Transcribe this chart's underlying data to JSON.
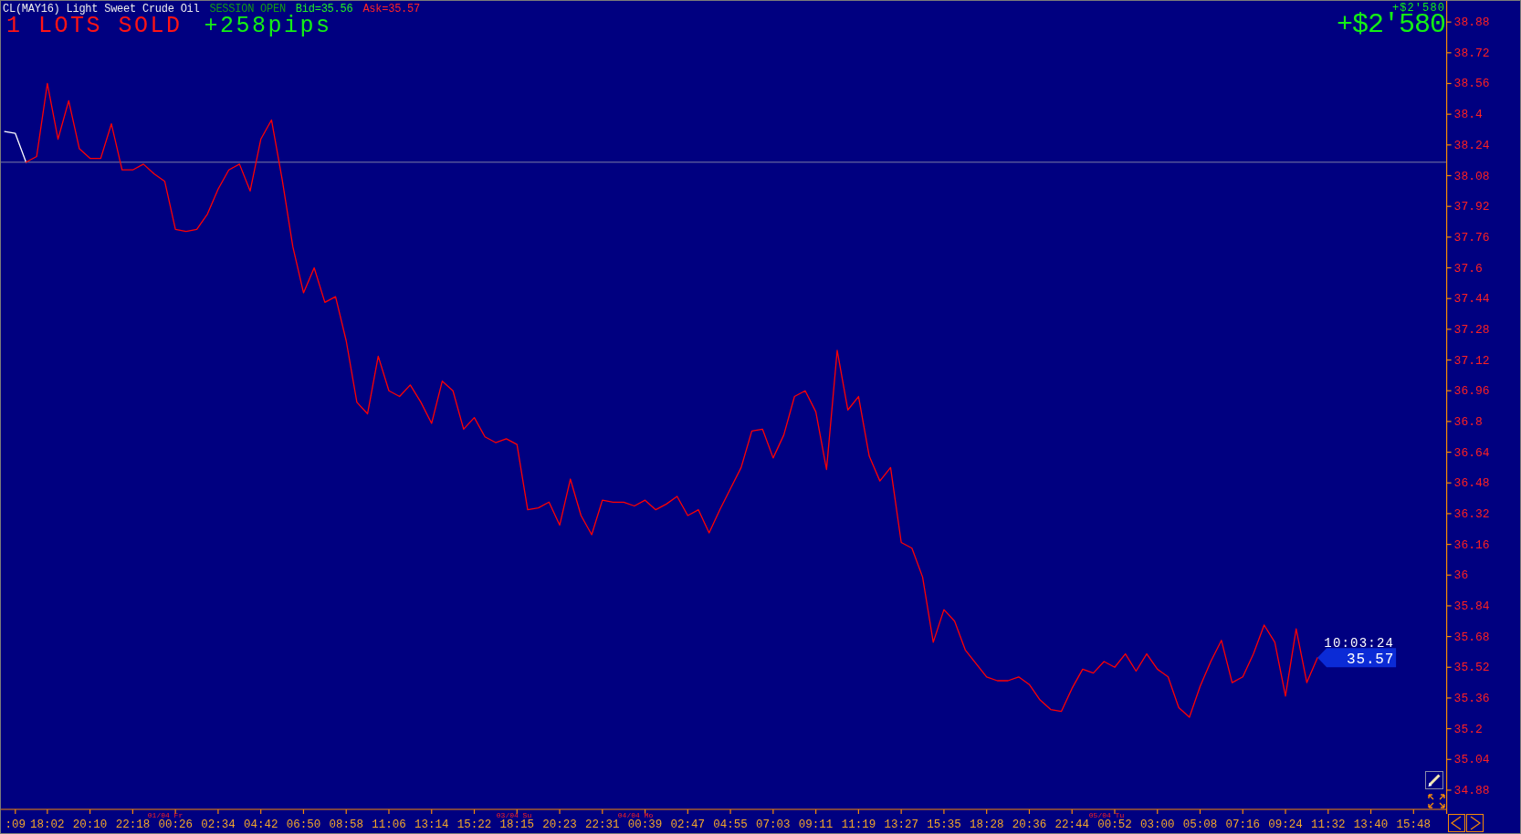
{
  "chart_data": {
    "type": "line",
    "title": "CL(MAY16) Light Sweet Crude Oil",
    "categories": [
      null,
      ":09",
      null,
      null,
      "18:02",
      null,
      null,
      null,
      "20:10",
      null,
      null,
      null,
      "22:18",
      null,
      null,
      null,
      "00:26",
      null,
      null,
      null,
      "02:34",
      null,
      null,
      null,
      "04:42",
      null,
      null,
      null,
      "06:50",
      null,
      null,
      null,
      "08:58",
      null,
      null,
      null,
      "11:06",
      null,
      null,
      null,
      "13:14",
      null,
      null,
      null,
      "15:22",
      null,
      null,
      null,
      "18:15",
      null,
      null,
      null,
      "20:23",
      null,
      null,
      null,
      "22:31",
      null,
      null,
      null,
      "00:39",
      null,
      null,
      null,
      "02:47",
      null,
      null,
      null,
      "04:55",
      null,
      null,
      null,
      "07:03",
      null,
      null,
      null,
      "09:11",
      null,
      null,
      null,
      "11:19",
      null,
      null,
      null,
      "13:27",
      null,
      null,
      null,
      "15:35",
      null,
      null,
      null,
      "18:28",
      null,
      null,
      null,
      "20:36",
      null,
      null,
      null,
      "22:44",
      null,
      null,
      null,
      "00:52",
      null,
      null,
      null,
      "03:00",
      null,
      null,
      null,
      "05:08",
      null,
      null,
      null,
      "07:16",
      null,
      null,
      null,
      "09:24",
      null,
      null,
      null,
      "11:32",
      null,
      null,
      null,
      "13:40",
      null,
      null,
      null,
      "15:48",
      null,
      null,
      null
    ],
    "ylim": [
      34.78,
      38.99
    ],
    "yticks": [
      34.88,
      35.04,
      35.2,
      35.36,
      35.52,
      35.68,
      35.84,
      36,
      36.16,
      36.32,
      36.48,
      36.64,
      36.8,
      36.96,
      37.12,
      37.28,
      37.44,
      37.6,
      37.76,
      37.92,
      38.08,
      38.24,
      38.4,
      38.56,
      38.72,
      38.88
    ],
    "series": [
      {
        "color": "#ffffff",
        "values": [
          38.31,
          38.3,
          38.15,
          null,
          null,
          null,
          null,
          null,
          null,
          null,
          null,
          null,
          null,
          null,
          null,
          null,
          null,
          null,
          null,
          null,
          null,
          null,
          null,
          null,
          null,
          null,
          null,
          null,
          null,
          null,
          null,
          null,
          null,
          null,
          null,
          null,
          null,
          null,
          null,
          null,
          null,
          null,
          null,
          null,
          null,
          null,
          null,
          null,
          null,
          null,
          null,
          null,
          null,
          null,
          null,
          null,
          null,
          null,
          null,
          null,
          null,
          null,
          null,
          null,
          null,
          null,
          null,
          null,
          null,
          null,
          null,
          null,
          null,
          null,
          null,
          null,
          null,
          null,
          null,
          null,
          null,
          null,
          null,
          null,
          null,
          null,
          null,
          null,
          null,
          null,
          null,
          null,
          null,
          null,
          null,
          null,
          null,
          null,
          null,
          null,
          null,
          null,
          null,
          null,
          null,
          null,
          null,
          null,
          null,
          null,
          null,
          null,
          null,
          null,
          null,
          null,
          null,
          null,
          null,
          null,
          null,
          null,
          null,
          null,
          null,
          null,
          null,
          null,
          null,
          null,
          null,
          null,
          null,
          null,
          null,
          null
        ]
      },
      {
        "color": "#ff0000",
        "values": [
          null,
          null,
          38.15,
          38.18,
          38.56,
          38.27,
          38.47,
          38.22,
          38.17,
          38.17,
          38.35,
          38.11,
          38.11,
          38.14,
          38.09,
          38.05,
          37.8,
          37.79,
          37.8,
          37.88,
          38.01,
          38.11,
          38.14,
          38,
          38.27,
          38.37,
          38.06,
          37.71,
          37.47,
          37.6,
          37.42,
          37.45,
          37.22,
          36.9,
          36.84,
          37.14,
          36.96,
          36.93,
          36.99,
          36.9,
          36.79,
          37.01,
          36.96,
          36.76,
          36.82,
          36.72,
          36.69,
          36.71,
          36.68,
          36.34,
          36.35,
          36.38,
          36.26,
          36.5,
          36.31,
          36.21,
          36.39,
          36.38,
          36.38,
          36.36,
          36.39,
          36.34,
          36.37,
          36.41,
          36.31,
          36.34,
          36.22,
          36.34,
          36.45,
          36.56,
          36.75,
          36.76,
          36.61,
          36.73,
          36.93,
          36.96,
          36.85,
          36.55,
          37.17,
          36.86,
          36.93,
          36.62,
          36.49,
          36.56,
          36.17,
          36.14,
          35.99,
          35.65,
          35.82,
          35.76,
          35.61,
          35.54,
          35.47,
          35.45,
          35.45,
          35.47,
          35.43,
          35.35,
          35.3,
          35.29,
          35.41,
          35.51,
          35.49,
          35.55,
          35.52,
          35.59,
          35.5,
          35.59,
          35.51,
          35.47,
          35.31,
          35.26,
          35.42,
          35.55,
          35.66,
          35.44,
          35.47,
          35.59,
          35.74,
          35.65,
          35.37,
          35.72,
          35.44,
          35.57,
          null,
          null,
          null,
          null,
          null,
          null,
          null,
          null,
          null,
          null,
          null,
          null
        ]
      }
    ],
    "ref_lines": [
      {
        "axis": "y",
        "value": 38.15,
        "color": "#7b7ba6"
      }
    ],
    "annotations": [
      "SESSION OPEN",
      "Bid=35.56",
      "Ask=35.57",
      "1 LOTS SOLD",
      "+258pips",
      "+$2'580",
      "+$2'580",
      "01/04 Fr",
      "03/04 Su",
      "04/04 Mo",
      "05/04 Tu",
      "10:03:24",
      "35.57"
    ]
  }
}
